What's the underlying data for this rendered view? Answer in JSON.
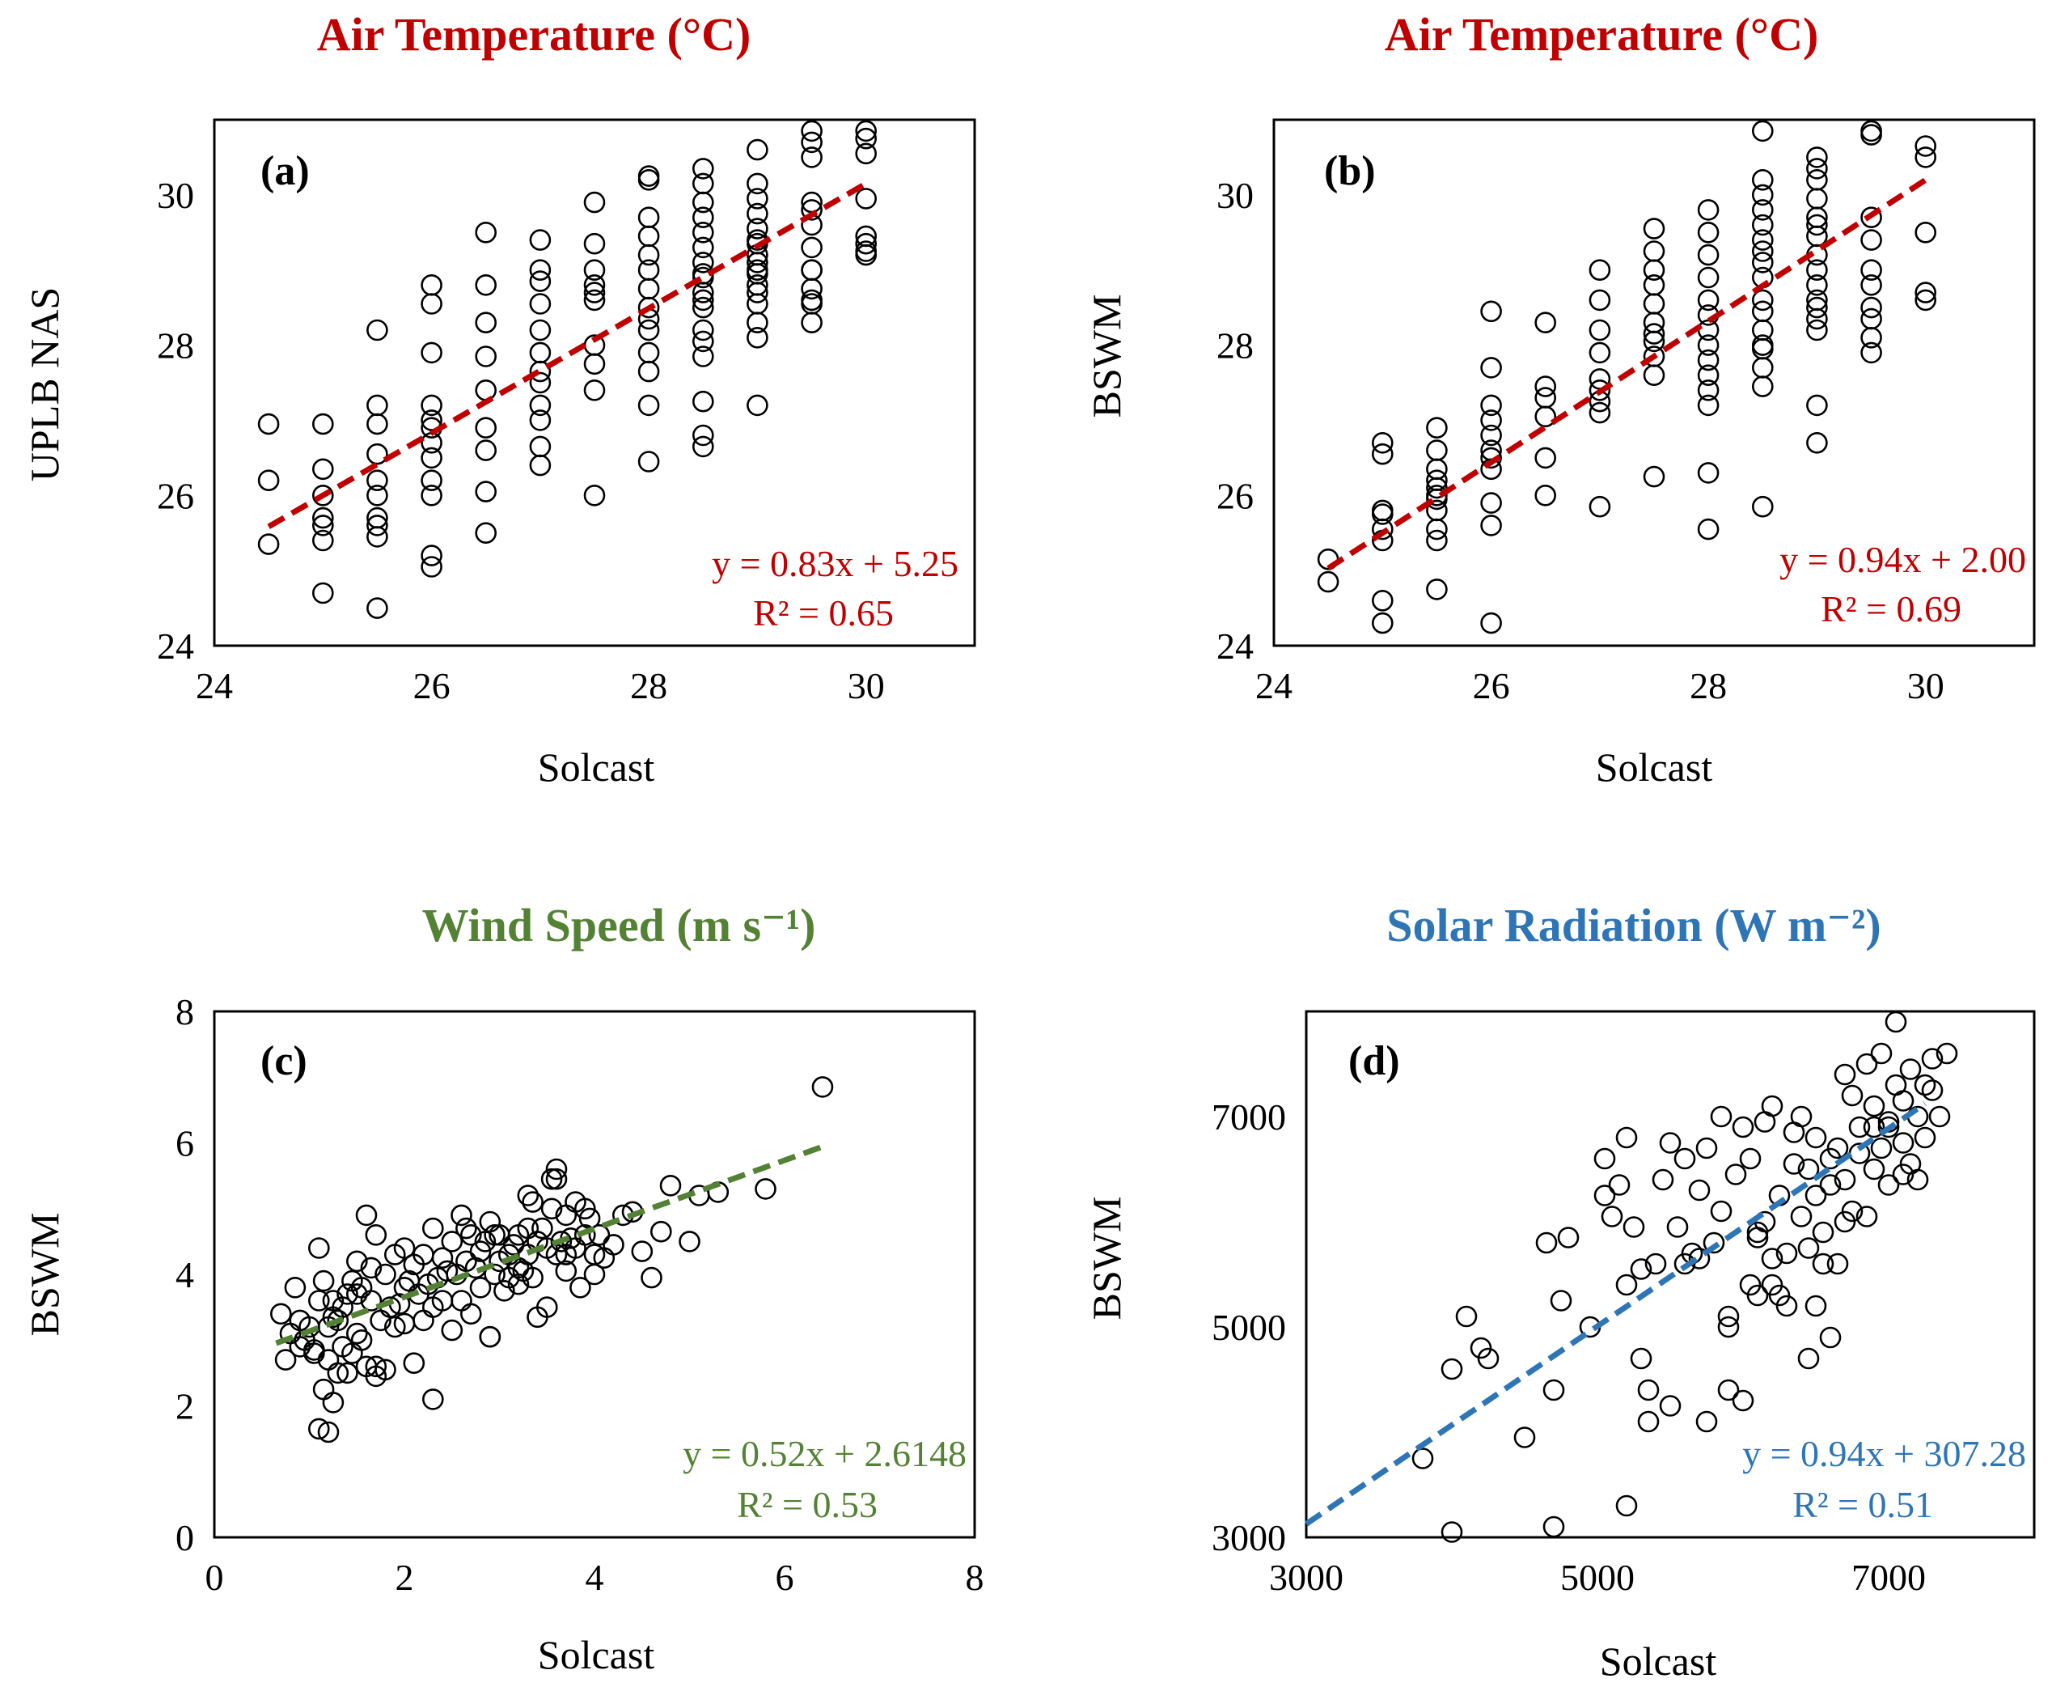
{
  "colors": {
    "a": "#c00000",
    "b": "#c00000",
    "c": "#548235",
    "d": "#2e75b6"
  },
  "chart_data": [
    {
      "id": "a",
      "type": "scatter",
      "title": "Air Temperature (°C)",
      "panel_label": "(a)",
      "xlabel": "Solcast",
      "ylabel": "UPLB NAS",
      "xlim": [
        24,
        31
      ],
      "ylim": [
        24,
        31
      ],
      "xticks": [
        "24",
        "26",
        "28",
        "30"
      ],
      "yticks": [
        "24",
        "26",
        "28",
        "30"
      ],
      "trendline": {
        "slope": 0.83,
        "intercept": 5.25,
        "x_range": [
          24.5,
          30
        ]
      },
      "equation": "y = 0.83x + 5.25",
      "r2": "R² = 0.65",
      "x": [
        24.5,
        24.5,
        24.5,
        25,
        25,
        25,
        25,
        25,
        25,
        25,
        25.5,
        25.5,
        25.5,
        25.5,
        25.5,
        25.5,
        25.5,
        25.5,
        25.5,
        25.5,
        26,
        26,
        26,
        26,
        26,
        26,
        26,
        26,
        26,
        26,
        26,
        26,
        26.5,
        26.5,
        26.5,
        26.5,
        26.5,
        26.5,
        26.5,
        26.5,
        26.5,
        27,
        27,
        27,
        27,
        27,
        27,
        27,
        27,
        27,
        27,
        27,
        27,
        27.5,
        27.5,
        27.5,
        27.5,
        27.5,
        27.5,
        27.5,
        27.5,
        27.5,
        27.5,
        28,
        28,
        28,
        28,
        28,
        28,
        28,
        28,
        28,
        28,
        28,
        28,
        28,
        28,
        28.5,
        28.5,
        28.5,
        28.5,
        28.5,
        28.5,
        28.5,
        28.5,
        28.5,
        28.5,
        28.5,
        28.5,
        28.5,
        28.5,
        28.5,
        28.5,
        28.5,
        28.5,
        29,
        29,
        29,
        29,
        29,
        29,
        29,
        29,
        29,
        29,
        29,
        29,
        29,
        29,
        29,
        29,
        29,
        29.5,
        29.5,
        29.5,
        29.5,
        29.5,
        29.5,
        29.5,
        29.5,
        29.5,
        29.5,
        29.5,
        29.5,
        29.5,
        30,
        30,
        30,
        30,
        30,
        30,
        30,
        30
      ],
      "y": [
        25.35,
        26.2,
        26.95,
        24.7,
        25.4,
        25.6,
        25.7,
        26.0,
        26.35,
        26.95,
        24.5,
        25.45,
        25.6,
        25.7,
        26.0,
        26.2,
        26.55,
        26.95,
        27.2,
        28.2,
        25.05,
        25.2,
        26.0,
        26.2,
        26.5,
        26.7,
        27.0,
        27.2,
        27.9,
        28.55,
        28.8,
        26.9,
        25.5,
        26.05,
        26.6,
        26.9,
        27.4,
        27.85,
        28.3,
        28.8,
        29.5,
        26.4,
        26.65,
        27.0,
        27.2,
        27.5,
        27.9,
        28.2,
        28.55,
        28.85,
        29.0,
        29.4,
        27.65,
        26.0,
        27.4,
        27.75,
        28.0,
        28.6,
        28.8,
        29.0,
        29.35,
        29.9,
        28.7,
        26.45,
        27.2,
        27.9,
        28.2,
        28.5,
        28.75,
        29.0,
        29.2,
        29.45,
        29.7,
        30.2,
        30.25,
        28.35,
        27.65,
        26.65,
        26.8,
        27.25,
        27.85,
        28.2,
        28.5,
        28.7,
        28.9,
        29.1,
        29.3,
        29.5,
        29.7,
        29.9,
        30.15,
        30.35,
        28.95,
        28.05,
        28.6,
        27.2,
        28.1,
        28.3,
        28.55,
        28.8,
        29.0,
        29.2,
        29.4,
        29.55,
        29.75,
        29.95,
        30.15,
        30.6,
        29.1,
        28.7,
        28.95,
        29.35,
        28.3,
        28.55,
        28.75,
        29.0,
        29.3,
        29.6,
        29.8,
        30.5,
        30.7,
        30.85,
        28.6,
        29.0,
        29.9,
        29.2,
        29.35,
        29.45,
        29.95,
        30.55,
        30.75,
        30.85,
        29.25
      ]
    },
    {
      "id": "b",
      "type": "scatter",
      "title": "Air Temperature (°C)",
      "panel_label": "(b)",
      "xlabel": "Solcast",
      "ylabel": "BSWM",
      "xlim": [
        24,
        31
      ],
      "ylim": [
        24,
        31
      ],
      "xticks": [
        "24",
        "26",
        "28",
        "30"
      ],
      "yticks": [
        "24",
        "26",
        "28",
        "30"
      ],
      "trendline": {
        "slope": 0.94,
        "intercept": 2.0,
        "x_range": [
          24.5,
          30
        ]
      },
      "equation": "y = 0.94x + 2.00",
      "r2": "R² = 0.69",
      "x": [
        24.5,
        24.5,
        25,
        25,
        25,
        25,
        25,
        25,
        25,
        25,
        25.5,
        25.5,
        25.5,
        25.5,
        25.5,
        25.5,
        25.5,
        25.5,
        25.5,
        25.5,
        25.5,
        26,
        26,
        26,
        26,
        26,
        26,
        26,
        26,
        26,
        26,
        26,
        26.5,
        26.5,
        26.5,
        26.5,
        26.5,
        26.5,
        27,
        27,
        27,
        27,
        27,
        27,
        27,
        27,
        27,
        27.5,
        27.5,
        27.5,
        27.5,
        27.5,
        27.5,
        27.5,
        27.5,
        27.5,
        27.5,
        27.5,
        28,
        28,
        28,
        28,
        28,
        28,
        28,
        28,
        28,
        28,
        28,
        28,
        28,
        28,
        28.5,
        28.5,
        28.5,
        28.5,
        28.5,
        28.5,
        28.5,
        28.5,
        28.5,
        28.5,
        28.5,
        28.5,
        28.5,
        28.5,
        28.5,
        28.5,
        28.5,
        29,
        29,
        29,
        29,
        29,
        29,
        29,
        29,
        29,
        29,
        29,
        29,
        29,
        29,
        29,
        29,
        29.5,
        29.5,
        29.5,
        29.5,
        29.5,
        29.5,
        29.5,
        29.5,
        29.5,
        29.5,
        30,
        30,
        30,
        30,
        30
      ],
      "y": [
        24.85,
        25.15,
        24.3,
        24.6,
        25.4,
        25.75,
        25.8,
        26.55,
        26.7,
        25.55,
        24.75,
        25.4,
        25.55,
        25.8,
        26.0,
        26.2,
        26.35,
        26.6,
        26.9,
        25.95,
        26.1,
        24.3,
        25.6,
        25.9,
        26.35,
        26.6,
        26.8,
        27.0,
        27.2,
        27.7,
        28.45,
        26.5,
        26.0,
        26.5,
        27.05,
        27.3,
        27.45,
        28.3,
        25.85,
        27.1,
        27.25,
        27.4,
        27.55,
        27.9,
        28.2,
        28.6,
        29.0,
        26.25,
        27.6,
        27.85,
        28.05,
        28.3,
        28.55,
        28.8,
        29.0,
        29.25,
        29.55,
        28.15,
        25.55,
        26.3,
        27.2,
        27.4,
        27.8,
        28.0,
        28.4,
        28.6,
        28.9,
        29.2,
        29.5,
        29.8,
        27.6,
        28.2,
        25.85,
        27.45,
        27.7,
        28.0,
        28.2,
        28.6,
        28.9,
        29.1,
        29.4,
        29.6,
        29.8,
        30.0,
        30.2,
        30.85,
        27.95,
        28.45,
        29.25,
        26.7,
        27.2,
        28.2,
        28.5,
        28.8,
        29.0,
        29.2,
        29.45,
        29.7,
        29.95,
        30.2,
        30.5,
        28.35,
        28.6,
        29.6,
        30.35,
        27.9,
        28.1,
        28.35,
        28.8,
        29.0,
        29.4,
        29.7,
        30.8,
        30.85,
        28.5,
        28.6,
        29.5,
        30.5,
        30.65,
        28.7
      ]
    },
    {
      "id": "c",
      "type": "scatter",
      "title": "Wind Speed (m s⁻¹)",
      "panel_label": "(c)",
      "xlabel": "Solcast",
      "ylabel": "BSWM",
      "xlim": [
        0,
        8
      ],
      "ylim": [
        0,
        8
      ],
      "xticks": [
        "0",
        "2",
        "4",
        "6",
        "8"
      ],
      "yticks": [
        "0",
        "2",
        "4",
        "6",
        "8"
      ],
      "trendline": {
        "slope": 0.52,
        "intercept": 2.6148,
        "x_range": [
          0.65,
          6.45
        ]
      },
      "equation": "y = 0.52x + 2.6148",
      "r2": "R² = 0.53",
      "x": [
        0.7,
        0.75,
        0.8,
        0.85,
        0.9,
        0.9,
        0.95,
        1.0,
        1.05,
        1.1,
        1.1,
        1.15,
        1.15,
        1.2,
        1.2,
        1.25,
        1.25,
        1.3,
        1.3,
        1.35,
        1.35,
        1.4,
        1.4,
        1.45,
        1.45,
        1.5,
        1.5,
        1.55,
        1.55,
        1.6,
        1.6,
        1.65,
        1.65,
        1.7,
        1.7,
        1.75,
        1.8,
        1.8,
        1.85,
        1.9,
        1.9,
        1.95,
        2.0,
        2.0,
        2.05,
        2.1,
        2.1,
        2.15,
        2.2,
        2.2,
        2.25,
        2.3,
        2.3,
        2.35,
        2.4,
        2.4,
        2.45,
        2.5,
        2.5,
        2.55,
        2.6,
        2.6,
        2.65,
        2.7,
        2.7,
        2.75,
        2.8,
        2.8,
        2.85,
        2.9,
        2.9,
        2.95,
        3.0,
        3.0,
        3.05,
        3.1,
        3.1,
        3.15,
        3.2,
        3.2,
        3.25,
        3.3,
        3.3,
        3.35,
        3.4,
        3.4,
        3.45,
        3.5,
        3.5,
        3.55,
        3.6,
        3.6,
        3.65,
        3.7,
        3.7,
        3.75,
        3.8,
        3.8,
        3.85,
        3.9,
        3.9,
        3.95,
        4.0,
        4.0,
        4.05,
        4.1,
        4.2,
        4.3,
        4.4,
        4.5,
        4.6,
        4.7,
        4.8,
        5.0,
        5.1,
        5.3,
        5.8,
        6.4,
        3.6,
        3.3,
        2.9,
        2.3,
        1.2,
        1.1,
        3.2,
        3.7,
        2.0,
        1.5,
        1.25,
        2.95,
        3.35,
        1.05,
        1.7,
        2.65,
        3.55
      ],
      "y": [
        3.4,
        2.7,
        3.1,
        3.8,
        2.9,
        3.3,
        3.0,
        3.2,
        2.8,
        4.4,
        3.6,
        2.25,
        3.9,
        3.2,
        2.7,
        2.05,
        3.6,
        2.5,
        3.3,
        3.5,
        2.9,
        2.5,
        3.7,
        2.8,
        3.9,
        3.1,
        4.2,
        3.0,
        3.8,
        2.6,
        4.9,
        3.6,
        4.1,
        2.45,
        4.6,
        3.3,
        2.55,
        4.0,
        3.5,
        3.2,
        4.3,
        3.55,
        3.8,
        4.4,
        3.9,
        2.65,
        4.15,
        3.7,
        3.3,
        4.3,
        3.85,
        3.5,
        4.7,
        3.95,
        3.6,
        4.25,
        4.05,
        3.15,
        4.5,
        4.0,
        3.6,
        4.9,
        4.2,
        3.4,
        4.6,
        4.1,
        3.8,
        4.35,
        4.5,
        3.05,
        4.8,
        4.0,
        4.2,
        4.6,
        3.75,
        3.95,
        4.3,
        4.45,
        4.6,
        3.85,
        4.05,
        4.3,
        4.7,
        5.1,
        3.35,
        4.5,
        4.7,
        3.5,
        4.4,
        5.0,
        4.3,
        5.6,
        4.5,
        4.3,
        4.9,
        4.55,
        4.4,
        5.1,
        3.8,
        4.6,
        5.0,
        4.85,
        4.0,
        4.3,
        4.6,
        4.25,
        4.45,
        4.9,
        4.95,
        4.35,
        3.95,
        4.65,
        5.35,
        4.5,
        5.2,
        5.25,
        5.3,
        6.85,
        5.45,
        5.2,
        3.05,
        2.1,
        1.6,
        1.65,
        4.1,
        4.05,
        3.25,
        3.7,
        3.35,
        4.6,
        3.95,
        2.85,
        2.6,
        4.7,
        5.45
      ]
    },
    {
      "id": "d",
      "type": "scatter",
      "title": "Solar Radiation (W m⁻²)",
      "panel_label": "(d)",
      "xlabel": "Solcast",
      "ylabel": "BSWM",
      "xlim": [
        3000,
        8000
      ],
      "ylim": [
        3000,
        8000
      ],
      "xticks": [
        "3000",
        "5000",
        "7000"
      ],
      "yticks": [
        "3000",
        "5000",
        "7000"
      ],
      "trendline": {
        "slope": 0.94,
        "intercept": 307.28,
        "x_range": [
          3000,
          7250
        ]
      },
      "equation": "y = 0.94x + 307.28",
      "r2": "R² = 0.51",
      "x": [
        3800,
        4000,
        4000,
        4100,
        4200,
        4250,
        4500,
        4650,
        4700,
        4750,
        4700,
        4950,
        5050,
        5100,
        5150,
        5200,
        5200,
        5250,
        5300,
        5350,
        5350,
        5400,
        5450,
        5500,
        5500,
        5550,
        5600,
        5650,
        5700,
        5750,
        5750,
        5800,
        5850,
        5850,
        5900,
        5900,
        5950,
        6000,
        6000,
        6050,
        6050,
        6100,
        6100,
        6150,
        6150,
        6200,
        6200,
        6250,
        6250,
        6300,
        6300,
        6350,
        6350,
        6400,
        6400,
        6450,
        6450,
        6500,
        6500,
        6550,
        6550,
        6600,
        6600,
        6650,
        6650,
        6700,
        6700,
        6750,
        6750,
        6800,
        6800,
        6850,
        6850,
        6900,
        6900,
        6950,
        6950,
        7000,
        7000,
        7050,
        7050,
        7100,
        7100,
        7150,
        7150,
        7200,
        7200,
        7250,
        7250,
        7300,
        7300,
        7350,
        7400,
        5200,
        5600,
        6100,
        6700,
        7000,
        7100,
        6900,
        6500,
        5900,
        5700,
        6600,
        6450,
        6200,
        5300,
        5050,
        4800
      ],
      "y": [
        3750,
        3050,
        4600,
        5100,
        4800,
        4700,
        3950,
        5800,
        4400,
        5250,
        3100,
        5000,
        6600,
        6050,
        6350,
        6800,
        3300,
        5950,
        4700,
        4400,
        4100,
        5600,
        6400,
        6750,
        4250,
        5950,
        6600,
        5700,
        6300,
        6700,
        4100,
        5800,
        7000,
        6100,
        5000,
        4400,
        6450,
        6900,
        4300,
        5400,
        6600,
        5300,
        5900,
        6000,
        6950,
        5650,
        7100,
        5300,
        6250,
        5200,
        5700,
        6550,
        6850,
        6050,
        7000,
        5750,
        6500,
        6250,
        6800,
        5600,
        5900,
        6350,
        6600,
        6700,
        5600,
        7400,
        6400,
        6100,
        7200,
        6900,
        6650,
        7500,
        6050,
        7100,
        6500,
        6700,
        7600,
        6350,
        6950,
        7300,
        7900,
        6750,
        7150,
        6550,
        7450,
        6400,
        7000,
        6800,
        7300,
        7550,
        7250,
        7000,
        7600,
        5400,
        5600,
        5850,
        6000,
        6900,
        6450,
        6900,
        5200,
        5100,
        5650,
        4900,
        4700,
        5400,
        5550,
        6250,
        5850
      ]
    }
  ]
}
